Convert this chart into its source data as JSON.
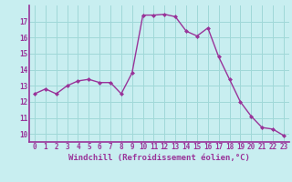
{
  "x": [
    0,
    1,
    2,
    3,
    4,
    5,
    6,
    7,
    8,
    9,
    10,
    11,
    12,
    13,
    14,
    15,
    16,
    17,
    18,
    19,
    20,
    21,
    22,
    23
  ],
  "y": [
    12.5,
    12.8,
    12.5,
    13.0,
    13.3,
    13.4,
    13.2,
    13.2,
    12.5,
    13.8,
    17.4,
    17.4,
    17.45,
    17.3,
    16.4,
    16.1,
    16.6,
    14.8,
    13.4,
    12.0,
    11.1,
    10.4,
    10.3,
    9.9
  ],
  "line_color": "#993399",
  "marker": "D",
  "marker_size": 2.0,
  "bg_color": "#c8eef0",
  "grid_color": "#a0d8d8",
  "xlabel": "Windchill (Refroidissement éolien,°C)",
  "xlabel_color": "#993399",
  "tick_color": "#993399",
  "ylim": [
    9.5,
    18.0
  ],
  "xlim": [
    -0.5,
    23.5
  ],
  "yticks": [
    10,
    11,
    12,
    13,
    14,
    15,
    16,
    17
  ],
  "xticks": [
    0,
    1,
    2,
    3,
    4,
    5,
    6,
    7,
    8,
    9,
    10,
    11,
    12,
    13,
    14,
    15,
    16,
    17,
    18,
    19,
    20,
    21,
    22,
    23
  ],
  "tick_fontsize": 5.5,
  "xlabel_fontsize": 6.5,
  "linewidth": 1.0
}
